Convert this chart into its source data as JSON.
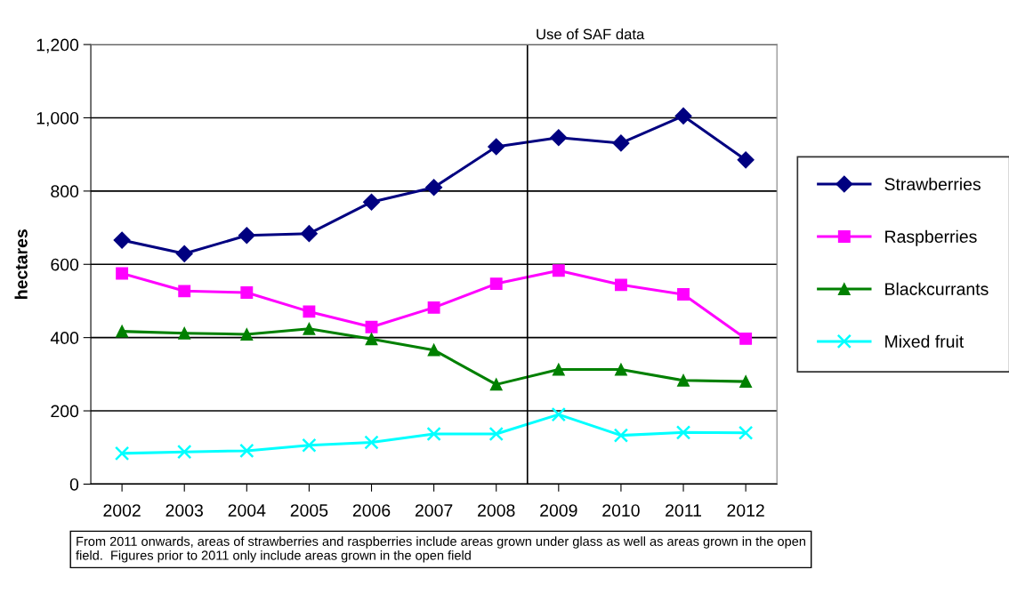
{
  "chart_data": {
    "type": "line",
    "ylabel": "hectares",
    "x": [
      2002,
      2003,
      2004,
      2005,
      2006,
      2007,
      2008,
      2009,
      2010,
      2011,
      2012
    ],
    "xlim": [
      2001.5,
      2012.5
    ],
    "xticks": [
      2002,
      2003,
      2004,
      2005,
      2006,
      2007,
      2008,
      2009,
      2010,
      2011,
      2012
    ],
    "ylim": [
      0,
      1200
    ],
    "yticks": [
      0,
      200,
      400,
      600,
      800,
      {
        "value": 1000,
        "label": "1,000"
      },
      {
        "value": 1200,
        "label": "1,200"
      }
    ],
    "grid": "y",
    "legend": "right",
    "series": [
      {
        "name": "Strawberries",
        "color": "#000080",
        "marker": "diamond",
        "values": [
          666,
          629,
          679,
          684,
          770,
          810,
          921,
          946,
          931,
          1005,
          885
        ]
      },
      {
        "name": "Raspberries",
        "color": "#ff00ff",
        "marker": "square",
        "values": [
          575,
          527,
          523,
          471,
          429,
          482,
          547,
          583,
          544,
          518,
          397
        ]
      },
      {
        "name": "Blackcurrants",
        "color": "#008000",
        "marker": "triangle",
        "values": [
          417,
          412,
          409,
          424,
          396,
          366,
          272,
          313,
          313,
          283,
          280
        ]
      },
      {
        "name": "Mixed fruit",
        "color": "#00ffff",
        "marker": "cross",
        "values": [
          84,
          88,
          91,
          106,
          114,
          137,
          137,
          190,
          133,
          141,
          140
        ]
      }
    ],
    "ref_lines": [
      {
        "axis": "x",
        "value": 2008.5,
        "label": "Use of SAF data",
        "color": "#000000"
      }
    ],
    "annotations": [
      "From 2011 onwards, areas of strawberries and raspberries include areas grown under glass as well as areas grown in the open field.  Figures prior to 2011 only include areas grown in the open field"
    ]
  }
}
